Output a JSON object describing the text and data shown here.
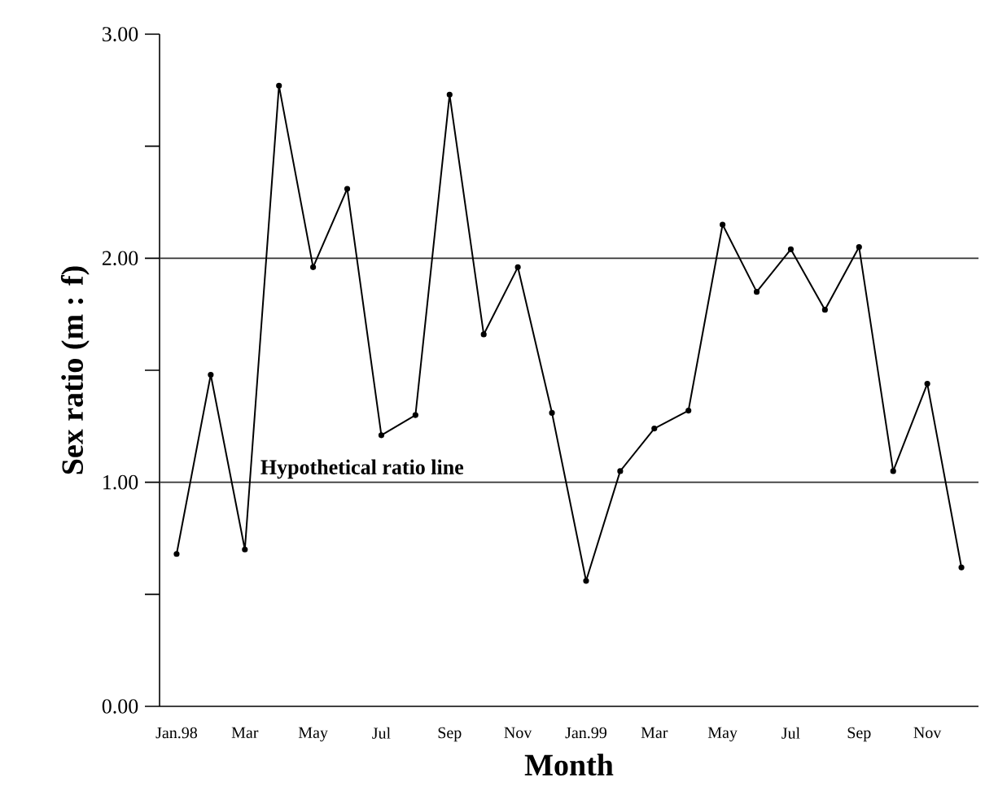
{
  "chart_data": {
    "type": "line",
    "xlabel": "Month",
    "ylabel": "Sex ratio (m : f)",
    "categories": [
      "Jan.98",
      null,
      "Mar",
      null,
      "May",
      null,
      "Jul",
      null,
      "Sep",
      null,
      "Nov",
      null,
      "Jan.99",
      null,
      "Mar",
      null,
      "May",
      null,
      "Jul",
      null,
      "Sep",
      null,
      "Nov",
      null
    ],
    "series": [
      {
        "color": "#000000",
        "values": [
          0.68,
          1.48,
          0.7,
          2.77,
          1.96,
          2.31,
          1.21,
          1.3,
          2.73,
          1.66,
          1.96,
          1.31,
          0.56,
          1.05,
          1.24,
          1.32,
          2.15,
          1.85,
          2.04,
          1.77,
          2.05,
          1.05,
          1.44,
          0.62
        ]
      }
    ],
    "ylim": [
      0,
      3
    ],
    "yticks": [
      {
        "value": 0,
        "label": "0.00"
      },
      {
        "value": 0.5,
        "label": null
      },
      {
        "value": 1,
        "label": "1.00"
      },
      {
        "value": 1.5,
        "label": null
      },
      {
        "value": 2,
        "label": "2.00"
      },
      {
        "value": 2.5,
        "label": null
      },
      {
        "value": 3,
        "label": "3.00"
      }
    ],
    "ref_lines": [
      {
        "axis": "y",
        "value": 1,
        "label": "Hypothetical ratio line",
        "color": "#333333"
      },
      {
        "axis": "y",
        "value": 2,
        "color": "#333333"
      }
    ],
    "marker": "circle",
    "line_style": "solid"
  }
}
